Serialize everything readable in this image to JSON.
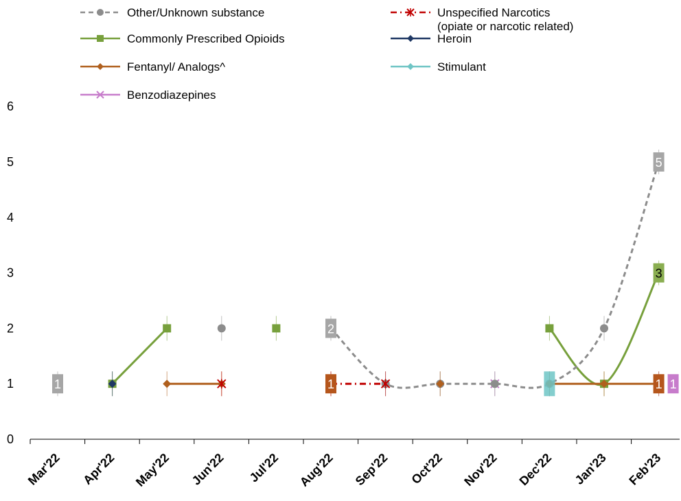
{
  "chart_data": {
    "type": "line",
    "categories": [
      "Mar'22",
      "Apr'22",
      "May'22",
      "Jun'22",
      "Jul'22",
      "Aug'22",
      "Sep'22",
      "Oct'22",
      "Nov'22",
      "Dec'22",
      "Jan'23",
      "Feb'23"
    ],
    "ylim": [
      0,
      6
    ],
    "yticks": [
      "0",
      "1",
      "2",
      "3",
      "4",
      "5",
      "6"
    ],
    "legend_position": "top",
    "series": [
      {
        "name": "Other/Unknown substance",
        "color": "#8C8C8C",
        "dash": "dashed",
        "marker": "circle",
        "values": [
          1,
          null,
          null,
          2,
          null,
          2,
          1,
          1,
          1,
          1,
          2,
          5
        ]
      },
      {
        "name": "Unspecified Narcotics (opiate or narcotic related)",
        "color": "#C00000",
        "dash": "dashdot",
        "marker": "star",
        "values": [
          null,
          null,
          null,
          1,
          null,
          1,
          1,
          null,
          null,
          null,
          null,
          null
        ]
      },
      {
        "name": "Commonly Prescribed Opioids",
        "color": "#77A03C",
        "dash": "solid",
        "marker": "square",
        "values": [
          null,
          1,
          2,
          null,
          2,
          null,
          null,
          null,
          null,
          2,
          1,
          3
        ]
      },
      {
        "name": "Heroin",
        "color": "#1F3864",
        "dash": "solid",
        "marker": "diamond",
        "values": [
          null,
          1,
          null,
          null,
          null,
          null,
          null,
          null,
          null,
          null,
          null,
          null
        ]
      },
      {
        "name": "Fentanyl/ Analogs^",
        "color": "#B0601E",
        "dash": "solid",
        "marker": "diamond",
        "values": [
          null,
          null,
          1,
          1,
          null,
          1,
          null,
          1,
          null,
          1,
          1,
          1
        ]
      },
      {
        "name": "Stimulant",
        "color": "#6FC5C5",
        "dash": "solid",
        "marker": "diamond",
        "values": [
          null,
          null,
          null,
          null,
          null,
          null,
          null,
          null,
          null,
          1,
          null,
          null
        ]
      },
      {
        "name": "Benzodiazepines",
        "color": "#C77CCB",
        "dash": "solid",
        "marker": "x",
        "values": [
          null,
          null,
          null,
          null,
          null,
          null,
          null,
          null,
          1,
          null,
          null,
          1
        ]
      }
    ],
    "data_labels": [
      {
        "series": "Other/Unknown substance",
        "category": "Mar'22",
        "text": "1"
      },
      {
        "series": "Other/Unknown substance",
        "category": "Aug'22",
        "text": "2"
      },
      {
        "series": "Other/Unknown substance",
        "category": "Feb'23",
        "text": "5"
      },
      {
        "series": "Commonly Prescribed Opioids",
        "category": "Feb'23",
        "text": "3"
      },
      {
        "series": "Fentanyl/ Analogs^",
        "category": "Aug'22",
        "text": "1"
      },
      {
        "series": "Fentanyl/ Analogs^",
        "category": "Feb'23",
        "text": "1"
      },
      {
        "series": "Benzodiazepines",
        "category": "Feb'23",
        "text": "1"
      }
    ]
  }
}
